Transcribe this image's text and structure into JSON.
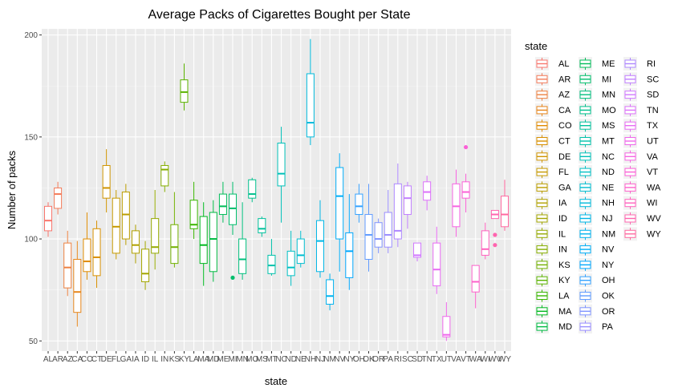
{
  "chart_data": {
    "type": "box",
    "title": "Average Packs of Cigarettes Bought per State",
    "xlabel": "state",
    "ylabel": "Number of packs",
    "ylim": [
      45,
      203
    ],
    "yticks": [
      50,
      100,
      150,
      200
    ],
    "grid": true,
    "legend_placement": "right",
    "legend_title": "state",
    "categories": [
      "AL",
      "AR",
      "AZ",
      "CA",
      "CO",
      "CT",
      "DE",
      "FL",
      "GA",
      "IA",
      "ID",
      "IL",
      "IN",
      "KS",
      "KY",
      "LA",
      "MA",
      "MD",
      "ME",
      "MI",
      "MN",
      "MO",
      "MS",
      "MT",
      "NC",
      "ND",
      "NE",
      "NH",
      "NJ",
      "NM",
      "NV",
      "NY",
      "OH",
      "OK",
      "OR",
      "PA",
      "RI",
      "SC",
      "SD",
      "TN",
      "TX",
      "UT",
      "VA",
      "VT",
      "WA",
      "WI",
      "WV",
      "WY"
    ],
    "colors": [
      "#F8766D",
      "#F37B59",
      "#ED8141",
      "#E7861B",
      "#E08B00",
      "#D89000",
      "#CF9400",
      "#C59900",
      "#BB9D00",
      "#B0A100",
      "#A3A500",
      "#95A900",
      "#85AD00",
      "#72B000",
      "#5BB300",
      "#39B600",
      "#00B81F",
      "#00BA42",
      "#00BC59",
      "#00BE6C",
      "#00BF7D",
      "#00C08D",
      "#00C19C",
      "#00C1AA",
      "#00C0B8",
      "#00BFC4",
      "#00BDD0",
      "#00BADB",
      "#00B6E5",
      "#00B2EE",
      "#00ADF6",
      "#00A7FC",
      "#35A2FF",
      "#619CFF",
      "#8195FF",
      "#9A8EFF",
      "#AE87FF",
      "#C17FFF",
      "#D078FF",
      "#DC71FA",
      "#E76BF3",
      "#EF67EB",
      "#F664E2",
      "#FB61D7",
      "#FD61CB",
      "#FF62BE",
      "#FF65AF",
      "#FF69A0"
    ],
    "series": [
      {
        "name": "AL",
        "min": 101,
        "q1": 104,
        "median": 109,
        "q3": 116,
        "max": 118,
        "outliers": []
      },
      {
        "name": "AR",
        "min": 112,
        "q1": 115,
        "median": 122,
        "q3": 125,
        "max": 128,
        "outliers": []
      },
      {
        "name": "AZ",
        "min": 72,
        "q1": 76,
        "median": 86,
        "q3": 98,
        "max": 104,
        "outliers": []
      },
      {
        "name": "CA",
        "min": 57,
        "q1": 64,
        "median": 74,
        "q3": 90,
        "max": 99,
        "outliers": []
      },
      {
        "name": "CO",
        "min": 80,
        "q1": 84,
        "median": 89,
        "q3": 100,
        "max": 113,
        "outliers": []
      },
      {
        "name": "CT",
        "min": 76,
        "q1": 82,
        "median": 91,
        "q3": 105,
        "max": 109,
        "outliers": []
      },
      {
        "name": "DE",
        "min": 113,
        "q1": 120,
        "median": 125,
        "q3": 136,
        "max": 144,
        "outliers": []
      },
      {
        "name": "FL",
        "min": 90,
        "q1": 93,
        "median": 106,
        "q3": 120,
        "max": 124,
        "outliers": []
      },
      {
        "name": "GA",
        "min": 97,
        "q1": 100,
        "median": 112,
        "q3": 123,
        "max": 127,
        "outliers": []
      },
      {
        "name": "IA",
        "min": 88,
        "q1": 93,
        "median": 97,
        "q3": 104,
        "max": 107,
        "outliers": []
      },
      {
        "name": "ID",
        "min": 75,
        "q1": 79,
        "median": 83,
        "q3": 95,
        "max": 99,
        "outliers": []
      },
      {
        "name": "IL",
        "min": 85,
        "q1": 93,
        "median": 96,
        "q3": 110,
        "max": 124,
        "outliers": []
      },
      {
        "name": "IN",
        "min": 123,
        "q1": 126,
        "median": 134,
        "q3": 136,
        "max": 138,
        "outliers": []
      },
      {
        "name": "KS",
        "min": 86,
        "q1": 88,
        "median": 96,
        "q3": 107,
        "max": 123,
        "outliers": []
      },
      {
        "name": "KY",
        "min": 163,
        "q1": 167,
        "median": 172,
        "q3": 178,
        "max": 186,
        "outliers": []
      },
      {
        "name": "LA",
        "min": 100,
        "q1": 105,
        "median": 107,
        "q3": 119,
        "max": 128,
        "outliers": []
      },
      {
        "name": "MA",
        "min": 77,
        "q1": 88,
        "median": 97,
        "q3": 111,
        "max": 118,
        "outliers": []
      },
      {
        "name": "MD",
        "min": 79,
        "q1": 84,
        "median": 100,
        "q3": 113,
        "max": 119,
        "outliers": []
      },
      {
        "name": "ME",
        "min": 108,
        "q1": 112,
        "median": 116,
        "q3": 122,
        "max": 128,
        "outliers": []
      },
      {
        "name": "MI",
        "min": 102,
        "q1": 107,
        "median": 115,
        "q3": 122,
        "max": 128,
        "outliers": [
          81
        ]
      },
      {
        "name": "MN",
        "min": 80,
        "q1": 83,
        "median": 90,
        "q3": 100,
        "max": 118,
        "outliers": []
      },
      {
        "name": "MO",
        "min": 118,
        "q1": 120,
        "median": 122,
        "q3": 129,
        "max": 130,
        "outliers": []
      },
      {
        "name": "MS",
        "min": 101,
        "q1": 103,
        "median": 105,
        "q3": 110,
        "max": 111,
        "outliers": []
      },
      {
        "name": "MT",
        "min": 82,
        "q1": 83,
        "median": 87,
        "q3": 92,
        "max": 100,
        "outliers": []
      },
      {
        "name": "NC",
        "min": 108,
        "q1": 126,
        "median": 132,
        "q3": 147,
        "max": 155,
        "outliers": []
      },
      {
        "name": "ND",
        "min": 77,
        "q1": 82,
        "median": 86,
        "q3": 94,
        "max": 104,
        "outliers": []
      },
      {
        "name": "NE",
        "min": 86,
        "q1": 88,
        "median": 92,
        "q3": 100,
        "max": 104,
        "outliers": []
      },
      {
        "name": "NH",
        "min": 146,
        "q1": 150,
        "median": 157,
        "q3": 181,
        "max": 198,
        "outliers": []
      },
      {
        "name": "NJ",
        "min": 81,
        "q1": 84,
        "median": 99,
        "q3": 109,
        "max": 119,
        "outliers": []
      },
      {
        "name": "NM",
        "min": 65,
        "q1": 68,
        "median": 72,
        "q3": 80,
        "max": 83,
        "outliers": []
      },
      {
        "name": "NV",
        "min": 84,
        "q1": 100,
        "median": 121,
        "q3": 135,
        "max": 142,
        "outliers": []
      },
      {
        "name": "NY",
        "min": 75,
        "q1": 81,
        "median": 94,
        "q3": 103,
        "max": 122,
        "outliers": []
      },
      {
        "name": "OH",
        "min": 108,
        "q1": 112,
        "median": 116,
        "q3": 122,
        "max": 127,
        "outliers": []
      },
      {
        "name": "OK",
        "min": 84,
        "q1": 90,
        "median": 102,
        "q3": 112,
        "max": 127,
        "outliers": []
      },
      {
        "name": "OR",
        "min": 93,
        "q1": 96,
        "median": 100,
        "q3": 108,
        "max": 110,
        "outliers": []
      },
      {
        "name": "PA",
        "min": 93,
        "q1": 96,
        "median": 102,
        "q3": 113,
        "max": 124,
        "outliers": []
      },
      {
        "name": "RI",
        "min": 96,
        "q1": 100,
        "median": 104,
        "q3": 127,
        "max": 137,
        "outliers": []
      },
      {
        "name": "SC",
        "min": 105,
        "q1": 112,
        "median": 120,
        "q3": 126,
        "max": 128,
        "outliers": []
      },
      {
        "name": "SD",
        "min": 89,
        "q1": 91,
        "median": 92,
        "q3": 98,
        "max": 98,
        "outliers": []
      },
      {
        "name": "TN",
        "min": 114,
        "q1": 119,
        "median": 123,
        "q3": 128,
        "max": 131,
        "outliers": []
      },
      {
        "name": "TX",
        "min": 73,
        "q1": 77,
        "median": 85,
        "q3": 98,
        "max": 106,
        "outliers": []
      },
      {
        "name": "UT",
        "min": 50,
        "q1": 52,
        "median": 53,
        "q3": 62,
        "max": 69,
        "outliers": []
      },
      {
        "name": "VA",
        "min": 101,
        "q1": 106,
        "median": 116,
        "q3": 127,
        "max": 134,
        "outliers": []
      },
      {
        "name": "VT",
        "min": 113,
        "q1": 120,
        "median": 123,
        "q3": 128,
        "max": 132,
        "outliers": [
          145
        ]
      },
      {
        "name": "WA",
        "min": 66,
        "q1": 74,
        "median": 79,
        "q3": 87,
        "max": 87,
        "outliers": []
      },
      {
        "name": "WI",
        "min": 90,
        "q1": 92,
        "median": 95,
        "q3": 104,
        "max": 108,
        "outliers": []
      },
      {
        "name": "WV",
        "min": 110,
        "q1": 110,
        "median": 112,
        "q3": 114,
        "max": 114,
        "outliers": [
          102,
          97
        ]
      },
      {
        "name": "WY",
        "min": 104,
        "q1": 106,
        "median": 112,
        "q3": 121,
        "max": 129,
        "outliers": []
      }
    ]
  }
}
